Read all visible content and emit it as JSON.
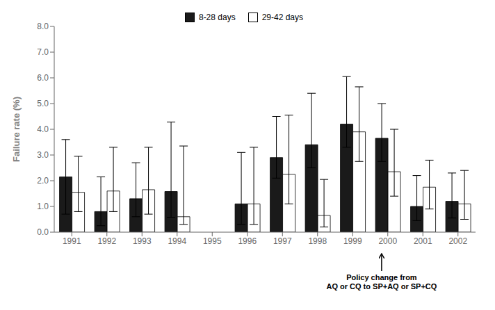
{
  "chart_data": {
    "type": "bar",
    "ylabel": "Failure rate (%)",
    "categories": [
      "1991",
      "1992",
      "1993",
      "1994",
      "1995",
      "1996",
      "1997",
      "1998",
      "1999",
      "2000",
      "2001",
      "2002"
    ],
    "series": [
      {
        "name": "8-28 days",
        "color": "#1a1a1a",
        "values": [
          2.15,
          0.8,
          1.3,
          1.58,
          null,
          1.1,
          2.9,
          3.4,
          4.2,
          3.65,
          1.0,
          1.2
        ],
        "error_upper": [
          1.45,
          1.35,
          1.4,
          2.7,
          null,
          2.0,
          1.6,
          2.0,
          1.85,
          1.35,
          1.2,
          1.1
        ],
        "error_lower": [
          1.45,
          0.55,
          0.7,
          1.0,
          null,
          0.8,
          0.8,
          0.9,
          0.9,
          0.9,
          0.55,
          0.65
        ]
      },
      {
        "name": "29-42 days",
        "color": "#ffffff",
        "values": [
          1.55,
          1.6,
          1.65,
          0.6,
          null,
          1.1,
          2.25,
          0.65,
          3.9,
          2.35,
          1.75,
          1.1
        ],
        "error_upper": [
          1.4,
          1.7,
          1.65,
          2.75,
          null,
          2.2,
          2.3,
          1.4,
          1.75,
          1.65,
          1.05,
          1.3
        ],
        "error_lower": [
          0.75,
          0.8,
          0.95,
          0.3,
          null,
          0.8,
          1.15,
          0.45,
          1.15,
          0.95,
          0.85,
          0.6
        ]
      }
    ],
    "ylim": [
      0,
      8.0
    ],
    "yticks": [
      {
        "value": 0,
        "label": "0.0"
      },
      {
        "value": 1,
        "label": "1.0"
      },
      {
        "value": 2,
        "label": "2.0"
      },
      {
        "value": 3,
        "label": "3.0"
      },
      {
        "value": 4,
        "label": "4.0"
      },
      {
        "value": 5,
        "label": "5.0"
      },
      {
        "value": 6,
        "label": "6.0"
      },
      {
        "value": 7,
        "label": "7.0"
      },
      {
        "value": 8,
        "label": "8.0"
      }
    ],
    "grid": false,
    "legend": "top",
    "annotations": [
      {
        "text": [
          "Policy change from",
          "AQ or CQ to SP+AQ or SP+CQ"
        ],
        "x": "2000",
        "series": "8-28 days"
      }
    ]
  }
}
